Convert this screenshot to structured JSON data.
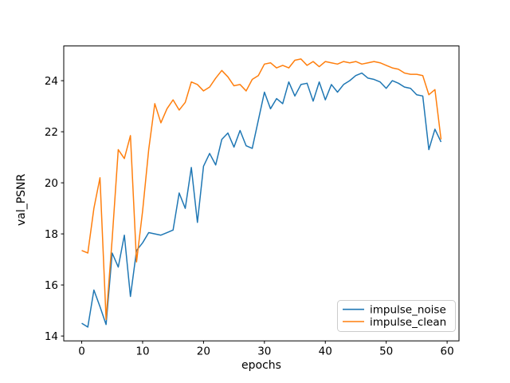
{
  "figure": {
    "background": "#ffffff"
  },
  "chart_data": {
    "type": "line",
    "title": "",
    "xlabel": "epochs",
    "ylabel": "val_PSNR",
    "xlim": [
      -2.95,
      61.95
    ],
    "ylim": [
      13.81,
      25.36
    ],
    "xticks": [
      0,
      10,
      20,
      30,
      40,
      50,
      60
    ],
    "yticks": [
      14,
      16,
      18,
      20,
      22,
      24
    ],
    "grid": false,
    "legend": {
      "position": "lower right"
    },
    "x": [
      0,
      1,
      2,
      3,
      4,
      5,
      6,
      7,
      8,
      9,
      10,
      11,
      12,
      13,
      14,
      15,
      16,
      17,
      18,
      19,
      20,
      21,
      22,
      23,
      24,
      25,
      26,
      27,
      28,
      29,
      30,
      31,
      32,
      33,
      34,
      35,
      36,
      37,
      38,
      39,
      40,
      41,
      42,
      43,
      44,
      45,
      46,
      47,
      48,
      49,
      50,
      51,
      52,
      53,
      54,
      55,
      56,
      57,
      58,
      59
    ],
    "series": [
      {
        "name": "impulse_noise",
        "color": "#1f77b4",
        "values": [
          14.5,
          14.35,
          15.8,
          15.15,
          14.45,
          17.25,
          16.7,
          17.95,
          15.55,
          17.35,
          17.65,
          18.05,
          18.0,
          17.95,
          18.05,
          18.15,
          19.6,
          19.0,
          20.6,
          18.45,
          20.65,
          21.15,
          20.7,
          21.7,
          21.95,
          21.4,
          22.05,
          21.45,
          21.35,
          22.45,
          23.55,
          22.9,
          23.3,
          23.1,
          23.95,
          23.4,
          23.85,
          23.9,
          23.2,
          23.95,
          23.25,
          23.85,
          23.55,
          23.85,
          24.0,
          24.2,
          24.3,
          24.1,
          24.05,
          23.95,
          23.7,
          24.0,
          23.9,
          23.75,
          23.7,
          23.45,
          23.4,
          21.3,
          22.1,
          21.6
        ]
      },
      {
        "name": "impulse_clean",
        "color": "#ff7f0e",
        "values": [
          17.35,
          17.25,
          19.0,
          20.2,
          14.65,
          17.8,
          21.3,
          20.95,
          21.85,
          16.9,
          18.9,
          21.3,
          23.1,
          22.35,
          22.9,
          23.25,
          22.85,
          23.15,
          23.95,
          23.85,
          23.6,
          23.75,
          24.1,
          24.4,
          24.15,
          23.8,
          23.85,
          23.6,
          24.05,
          24.2,
          24.65,
          24.7,
          24.5,
          24.6,
          24.5,
          24.8,
          24.85,
          24.6,
          24.75,
          24.55,
          24.75,
          24.7,
          24.65,
          24.75,
          24.7,
          24.75,
          24.65,
          24.7,
          24.75,
          24.7,
          24.6,
          24.5,
          24.45,
          24.3,
          24.25,
          24.25,
          24.2,
          23.45,
          23.65,
          21.7
        ]
      }
    ]
  }
}
